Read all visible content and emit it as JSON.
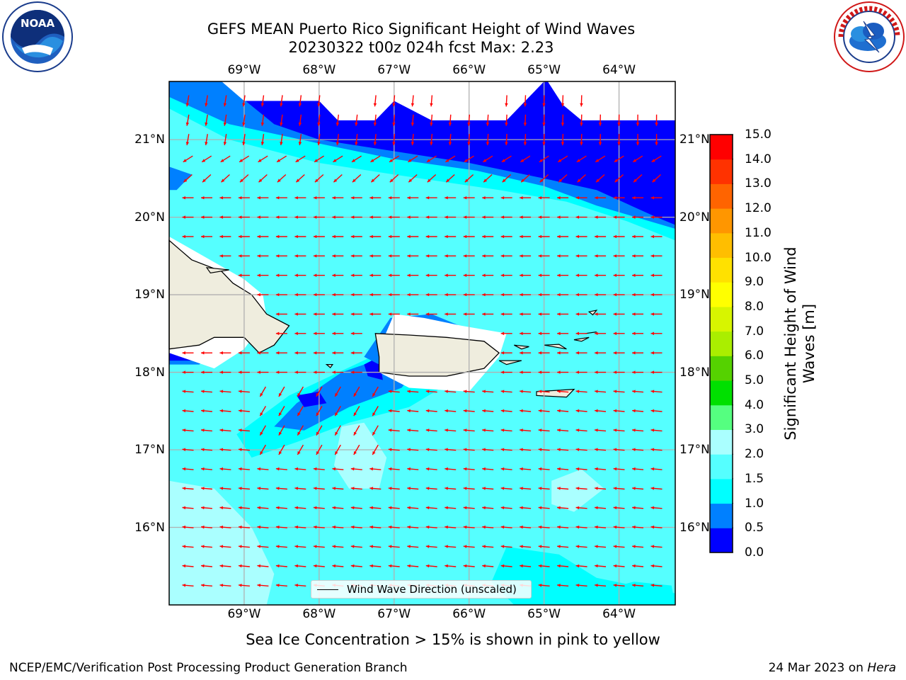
{
  "header": {
    "title_line1": "GEFS MEAN Puerto Rico Significant Height of Wind Waves",
    "title_line2": "20230322 t00z 024h fcst   Max: 2.23"
  },
  "logos": {
    "noaa": {
      "icon": "noaa-logo",
      "text": "NOAA",
      "ring_text": "NATIONAL OCEANIC AND ATMOSPHERIC ADMINISTRATION · U.S. DEPARTMENT OF COMMERCE"
    },
    "nws": {
      "icon": "nws-logo",
      "ring_text": "NATIONAL WEATHER SERVICE"
    }
  },
  "map": {
    "lon_range": [
      -70.0,
      -63.25
    ],
    "lat_range": [
      15.0,
      21.75
    ],
    "lon_ticks": [
      "69°W",
      "68°W",
      "67°W",
      "66°W",
      "65°W",
      "64°W"
    ],
    "lon_tick_values": [
      -69,
      -68,
      -67,
      -66,
      -65,
      -64
    ],
    "lat_ticks": [
      "21°N",
      "20°N",
      "19°N",
      "18°N",
      "17°N",
      "16°N"
    ],
    "lat_tick_values": [
      21,
      20,
      19,
      18,
      17,
      16
    ],
    "grid": true,
    "arrow_color": "#ff0000",
    "land_color": "#efedde"
  },
  "colorbar": {
    "title": "Significant Height of Wind Waves [m]",
    "levels": [
      "0.0",
      "0.5",
      "1.0",
      "1.5",
      "2.0",
      "3.0",
      "4.0",
      "5.0",
      "6.0",
      "7.0",
      "8.0",
      "9.0",
      "10.0",
      "11.0",
      "12.0",
      "13.0",
      "14.0",
      "15.0"
    ],
    "colors": [
      "#0000ff",
      "#0080ff",
      "#00ffff",
      "#55ffff",
      "#aaffff",
      "#55ff80",
      "#00e000",
      "#55d200",
      "#aaee00",
      "#d7f500",
      "#ffff00",
      "#ffe100",
      "#ffbe00",
      "#ff9600",
      "#ff6400",
      "#ff3200",
      "#ff0000"
    ]
  },
  "legend": {
    "label": "Wind Wave Direction (unscaled)"
  },
  "footer": {
    "ice_note": "Sea Ice Concentration > 15% is shown in pink to yellow",
    "credit": "NCEP/EMC/Verification Post Processing Product Generation Branch",
    "date": "24 Mar 2023 on",
    "host": "Hera"
  }
}
